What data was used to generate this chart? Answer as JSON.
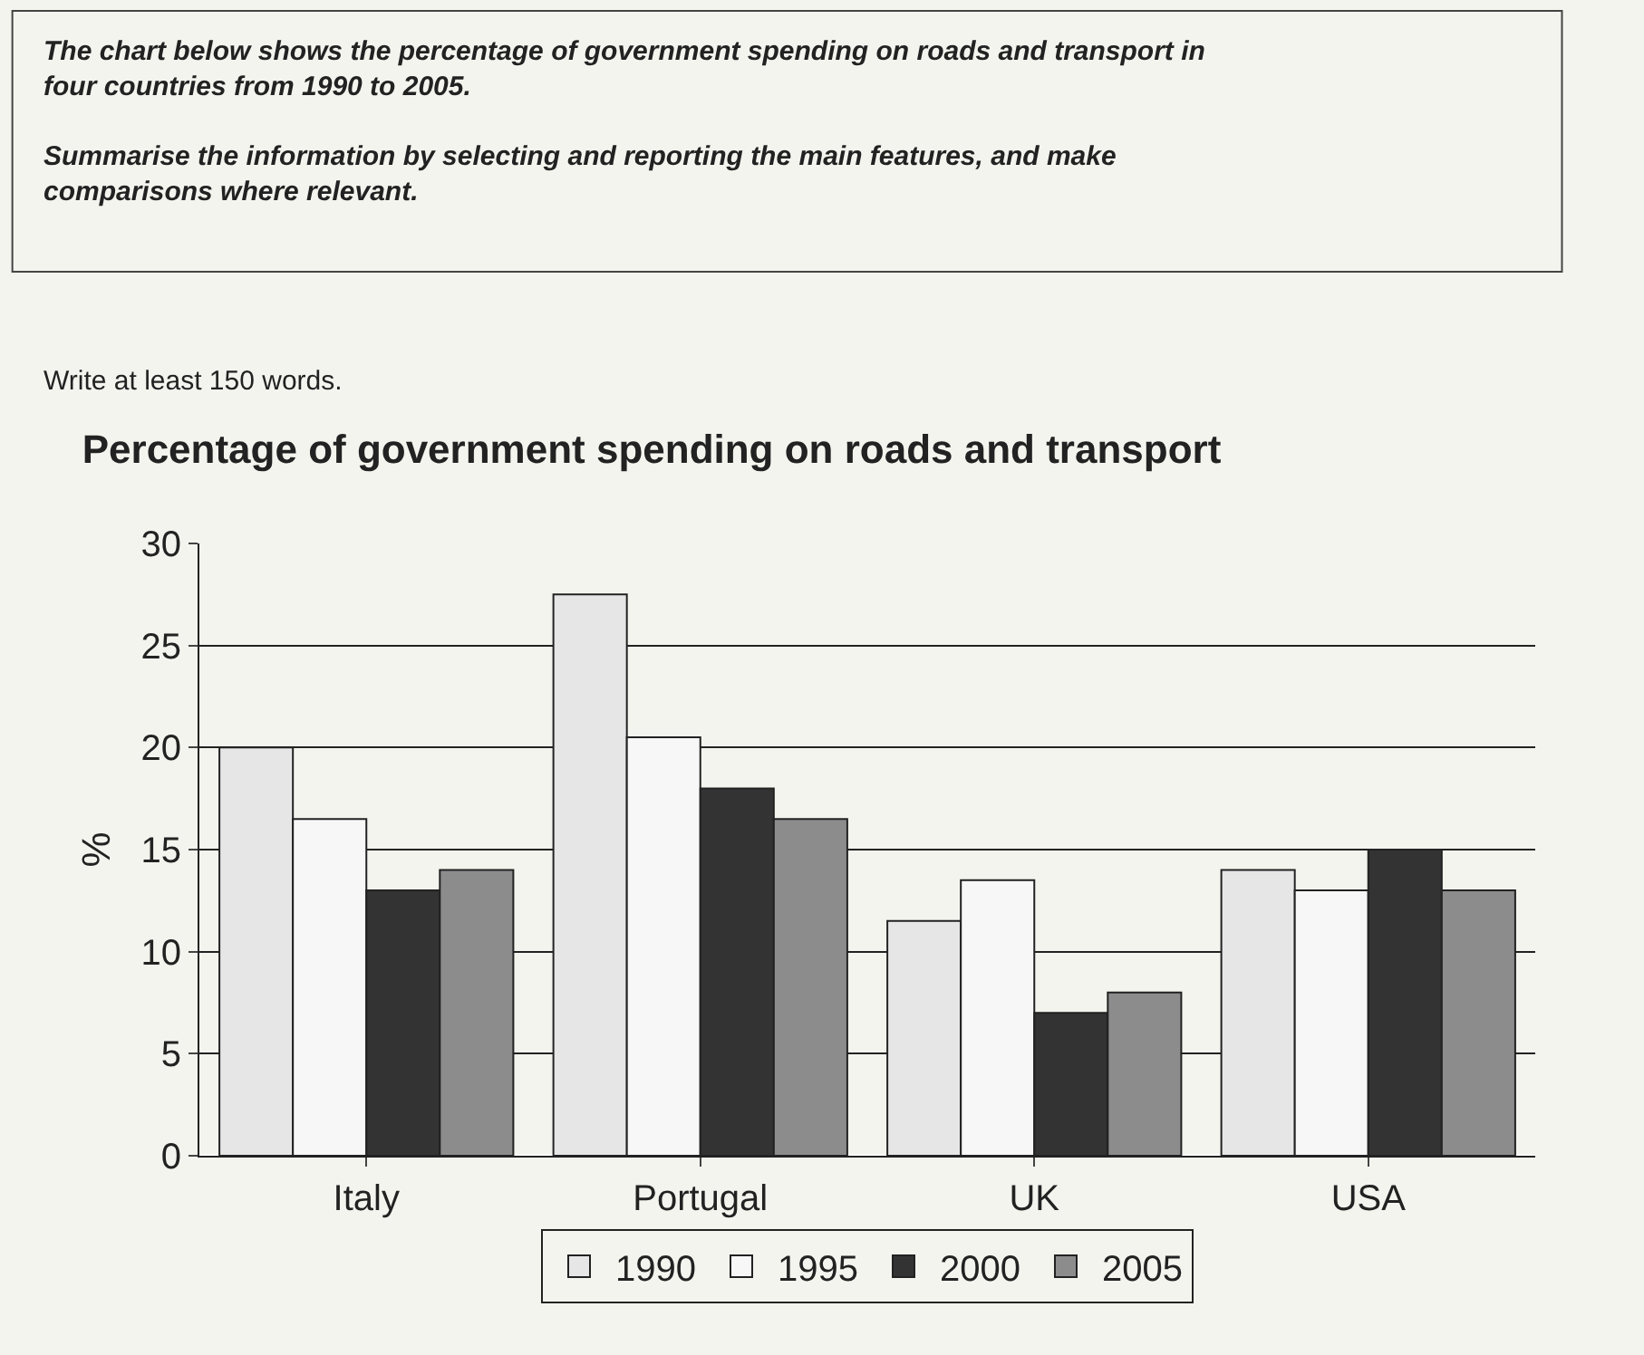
{
  "chart_data": {
    "type": "bar",
    "title": "Percentage of government spending on roads and transport",
    "ylabel": "%",
    "annotations": [
      "The chart below shows the percentage of government spending on roads and transport in four countries from 1990 to 2005.",
      "Summarise the information by selecting and reporting the main features, and make comparisons where relevant.",
      "Write at least 150 words."
    ],
    "categories": [
      "Italy",
      "Portugal",
      "UK",
      "USA"
    ],
    "series": [
      {
        "name": "1990",
        "color": "#e6e6e6",
        "values": [
          20,
          27.5,
          11.5,
          14
        ]
      },
      {
        "name": "1995",
        "color": "#f7f7f7",
        "values": [
          16.5,
          20.5,
          13.5,
          13
        ]
      },
      {
        "name": "2000",
        "color": "#333333",
        "values": [
          13,
          18,
          7,
          15
        ]
      },
      {
        "name": "2005",
        "color": "#8c8c8c",
        "values": [
          14,
          16.5,
          8,
          13
        ]
      }
    ],
    "ylim": [
      0,
      30
    ],
    "yticks": [
      0,
      5,
      10,
      15,
      20,
      25,
      30
    ],
    "grid": "y",
    "legend": "bottom"
  }
}
